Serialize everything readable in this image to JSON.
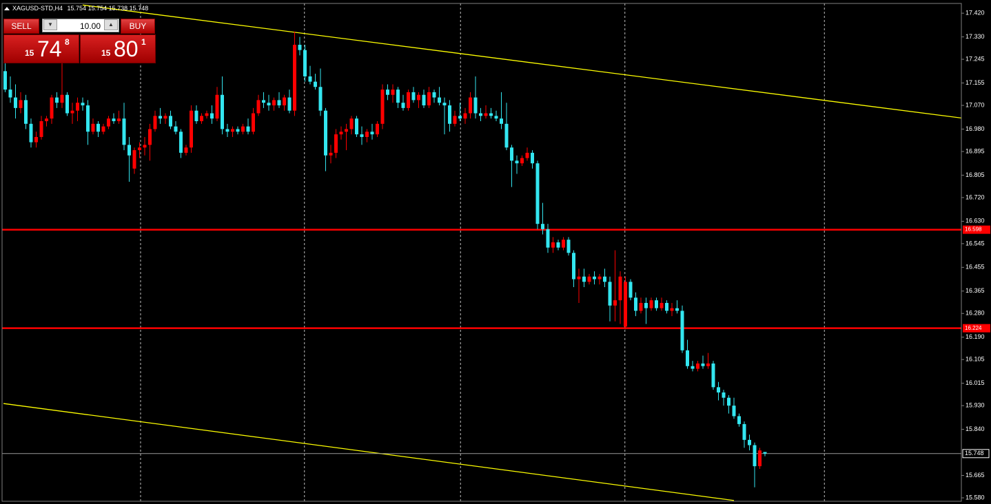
{
  "chart_data": {
    "type": "candlestick",
    "symbol": "XAGUSD-STD,H4",
    "up_color": "#ff0000",
    "down_color": "#33e6f0",
    "xlim": [
      -1,
      185
    ],
    "xticks": [
      26.2,
      57.9,
      88.1,
      119.9,
      158.5
    ],
    "ylim": [
      15.567,
      17.457
    ],
    "yticks": [
      {
        "value": 17.42,
        "label": "17.420"
      },
      {
        "value": 17.33,
        "label": "17.330"
      },
      17.245,
      17.155,
      {
        "value": 17.07,
        "label": "17.070"
      },
      {
        "value": 16.98,
        "label": "16.980"
      },
      16.895,
      16.805,
      {
        "value": 16.72,
        "label": "16.720"
      },
      {
        "value": 16.63,
        "label": "16.630"
      },
      16.545,
      16.455,
      16.365,
      {
        "value": 16.28,
        "label": "16.280"
      },
      {
        "value": 16.19,
        "label": "16.190"
      },
      16.105,
      16.015,
      {
        "value": 15.93,
        "label": "15.930"
      },
      {
        "value": 15.84,
        "label": "15.840"
      },
      15.665,
      {
        "value": 15.58,
        "label": "15.580"
      }
    ],
    "hlines": [
      {
        "value": 16.598,
        "color": "#ff0000"
      },
      {
        "value": 16.224,
        "color": "#ff0000"
      }
    ],
    "trendlines": [
      {
        "from": [
          15,
          17.451
        ],
        "to": [
          189,
          17.012
        ],
        "color": "#ffff00"
      },
      {
        "from": [
          -0.33,
          15.938
        ],
        "to": [
          141,
          15.57
        ],
        "color": "#ffff00"
      }
    ],
    "candles": [
      [
        17.2,
        17.25,
        17.12,
        17.13
      ],
      [
        17.13,
        17.18,
        17.08,
        17.1
      ],
      [
        17.1,
        17.15,
        17.02,
        17.06
      ],
      [
        17.06,
        17.12,
        17.04,
        17.09
      ],
      [
        17.09,
        17.11,
        16.98,
        17.0
      ],
      [
        17.0,
        17.02,
        16.91,
        16.93
      ],
      [
        16.93,
        16.97,
        16.91,
        16.95
      ],
      [
        16.95,
        17.03,
        16.94,
        17.01
      ],
      [
        17.01,
        17.03,
        16.99,
        17.02
      ],
      [
        17.02,
        17.11,
        17.0,
        17.1
      ],
      [
        17.1,
        17.12,
        17.06,
        17.08
      ],
      [
        17.08,
        17.23,
        17.06,
        17.11
      ],
      [
        17.11,
        17.12,
        17.03,
        17.04
      ],
      [
        17.04,
        17.08,
        17.0,
        17.05
      ],
      [
        17.05,
        17.1,
        17.01,
        17.08
      ],
      [
        17.08,
        17.1,
        17.05,
        17.07
      ],
      [
        17.07,
        17.09,
        16.92,
        16.97
      ],
      [
        16.97,
        17.02,
        16.96,
        17.0
      ],
      [
        17.0,
        17.01,
        16.95,
        16.97
      ],
      [
        16.97,
        17.0,
        16.96,
        16.99
      ],
      [
        16.99,
        17.03,
        16.98,
        17.02
      ],
      [
        17.02,
        17.04,
        17.0,
        17.01
      ],
      [
        17.01,
        17.05,
        17.0,
        17.02
      ],
      [
        17.02,
        17.08,
        16.9,
        16.92
      ],
      [
        16.92,
        16.95,
        16.78,
        16.88
      ],
      [
        16.83,
        16.91,
        16.81,
        16.9
      ],
      [
        16.9,
        16.93,
        16.87,
        16.91
      ],
      [
        16.91,
        16.95,
        16.88,
        16.92
      ],
      [
        16.92,
        17.0,
        16.86,
        16.98
      ],
      [
        16.98,
        17.05,
        16.97,
        17.03
      ],
      [
        17.03,
        17.06,
        17.0,
        17.02
      ],
      [
        17.02,
        17.04,
        17.0,
        17.03
      ],
      [
        17.03,
        17.05,
        16.98,
        16.99
      ],
      [
        16.99,
        17.01,
        16.96,
        16.97
      ],
      [
        16.97,
        16.98,
        16.87,
        16.89
      ],
      [
        16.89,
        16.92,
        16.88,
        16.91
      ],
      [
        16.91,
        17.07,
        16.89,
        17.05
      ],
      [
        17.05,
        17.07,
        17.0,
        17.01
      ],
      [
        17.01,
        17.04,
        17.0,
        17.03
      ],
      [
        17.03,
        17.05,
        17.02,
        17.04
      ],
      [
        17.04,
        17.07,
        17.0,
        17.02
      ],
      [
        17.02,
        17.14,
        17.01,
        17.11
      ],
      [
        17.11,
        17.18,
        16.96,
        16.98
      ],
      [
        16.98,
        17.0,
        16.95,
        16.97
      ],
      [
        16.97,
        16.99,
        16.95,
        16.98
      ],
      [
        16.98,
        16.99,
        16.96,
        16.97
      ],
      [
        16.97,
        17.0,
        16.96,
        16.99
      ],
      [
        16.99,
        17.02,
        16.96,
        16.97
      ],
      [
        16.97,
        17.06,
        16.96,
        17.04
      ],
      [
        17.04,
        17.11,
        17.03,
        17.09
      ],
      [
        17.09,
        17.12,
        17.06,
        17.08
      ],
      [
        17.08,
        17.11,
        17.05,
        17.07
      ],
      [
        17.07,
        17.1,
        17.05,
        17.09
      ],
      [
        17.09,
        17.12,
        17.06,
        17.07
      ],
      [
        17.07,
        17.11,
        17.05,
        17.1
      ],
      [
        17.1,
        17.13,
        17.04,
        17.05
      ],
      [
        17.05,
        17.35,
        17.03,
        17.3
      ],
      [
        17.3,
        17.33,
        17.26,
        17.28
      ],
      [
        17.28,
        17.3,
        17.16,
        17.18
      ],
      [
        17.18,
        17.22,
        17.15,
        17.16
      ],
      [
        17.16,
        17.19,
        17.13,
        17.14
      ],
      [
        17.14,
        17.21,
        17.03,
        17.05
      ],
      [
        17.05,
        17.06,
        16.82,
        16.88
      ],
      [
        16.88,
        16.92,
        16.85,
        16.89
      ],
      [
        16.89,
        16.98,
        16.87,
        16.96
      ],
      [
        16.96,
        16.99,
        16.94,
        16.97
      ],
      [
        16.97,
        17.0,
        16.9,
        16.98
      ],
      [
        16.98,
        17.03,
        16.96,
        17.02
      ],
      [
        17.02,
        17.03,
        16.95,
        16.96
      ],
      [
        16.96,
        16.99,
        16.92,
        16.95
      ],
      [
        16.95,
        16.98,
        16.93,
        16.97
      ],
      [
        16.97,
        17.0,
        16.94,
        16.96
      ],
      [
        16.96,
        17.01,
        16.95,
        17.0
      ],
      [
        17.0,
        17.15,
        16.98,
        17.13
      ],
      [
        17.13,
        17.15,
        17.09,
        17.11
      ],
      [
        17.11,
        17.15,
        17.08,
        17.13
      ],
      [
        17.13,
        17.14,
        17.06,
        17.08
      ],
      [
        17.08,
        17.11,
        17.05,
        17.06
      ],
      [
        17.06,
        17.13,
        17.05,
        17.12
      ],
      [
        17.12,
        17.14,
        17.08,
        17.09
      ],
      [
        17.09,
        17.12,
        17.06,
        17.11
      ],
      [
        17.11,
        17.13,
        17.06,
        17.07
      ],
      [
        17.07,
        17.14,
        17.06,
        17.12
      ],
      [
        17.12,
        17.13,
        17.08,
        17.1
      ],
      [
        17.1,
        17.14,
        17.07,
        17.08
      ],
      [
        17.08,
        17.1,
        16.96,
        17.07
      ],
      [
        17.07,
        17.09,
        16.97,
        17.0
      ],
      [
        17.0,
        17.05,
        16.99,
        17.03
      ],
      [
        17.03,
        17.08,
        17.01,
        17.02
      ],
      [
        17.02,
        17.06,
        17.0,
        17.04
      ],
      [
        17.04,
        17.12,
        17.02,
        17.1
      ],
      [
        17.1,
        17.18,
        17.02,
        17.04
      ],
      [
        17.04,
        17.06,
        17.01,
        17.03
      ],
      [
        17.03,
        17.07,
        17.02,
        17.04
      ],
      [
        17.04,
        17.06,
        17.02,
        17.03
      ],
      [
        17.03,
        17.05,
        17.01,
        17.02
      ],
      [
        17.02,
        17.12,
        16.98,
        17.0
      ],
      [
        17.0,
        17.08,
        16.9,
        16.91
      ],
      [
        16.91,
        16.92,
        16.76,
        16.86
      ],
      [
        16.86,
        16.88,
        16.81,
        16.85
      ],
      [
        16.85,
        16.88,
        16.84,
        16.87
      ],
      [
        16.87,
        16.91,
        16.86,
        16.89
      ],
      [
        16.89,
        16.9,
        16.83,
        16.85
      ],
      [
        16.85,
        16.86,
        16.6,
        16.62
      ],
      [
        16.62,
        16.7,
        16.58,
        16.6
      ],
      [
        16.6,
        16.62,
        16.51,
        16.53
      ],
      [
        16.53,
        16.57,
        16.51,
        16.55
      ],
      [
        16.55,
        16.56,
        16.52,
        16.53
      ],
      [
        16.53,
        16.57,
        16.52,
        16.56
      ],
      [
        16.56,
        16.57,
        16.5,
        16.51
      ],
      [
        16.51,
        16.52,
        16.38,
        16.41
      ],
      [
        16.41,
        16.45,
        16.32,
        16.42
      ],
      [
        16.42,
        16.45,
        16.38,
        16.4
      ],
      [
        16.4,
        16.43,
        16.39,
        16.42
      ],
      [
        16.42,
        16.44,
        16.39,
        16.41
      ],
      [
        16.41,
        16.43,
        16.39,
        16.42
      ],
      [
        16.42,
        16.45,
        16.38,
        16.4
      ],
      [
        16.4,
        16.42,
        16.25,
        16.31
      ],
      [
        16.31,
        16.52,
        16.25,
        16.33
      ],
      [
        16.33,
        16.44,
        16.24,
        16.42
      ],
      [
        16.23,
        16.42,
        16.22,
        16.4
      ],
      [
        16.4,
        16.41,
        16.33,
        16.34
      ],
      [
        16.34,
        16.36,
        16.27,
        16.29
      ],
      [
        16.29,
        16.34,
        16.28,
        16.32
      ],
      [
        16.32,
        16.34,
        16.24,
        16.3
      ],
      [
        16.3,
        16.34,
        16.29,
        16.33
      ],
      [
        16.33,
        16.34,
        16.29,
        16.3
      ],
      [
        16.3,
        16.34,
        16.29,
        16.32
      ],
      [
        16.32,
        16.33,
        16.28,
        16.29
      ],
      [
        16.29,
        16.32,
        16.27,
        16.3
      ],
      [
        16.3,
        16.33,
        16.28,
        16.29
      ],
      [
        16.29,
        16.31,
        16.13,
        16.14
      ],
      [
        16.14,
        16.18,
        16.07,
        16.08
      ],
      [
        16.08,
        16.1,
        16.06,
        16.07
      ],
      [
        16.07,
        16.1,
        16.06,
        16.09
      ],
      [
        16.09,
        16.12,
        16.07,
        16.08
      ],
      [
        16.08,
        16.13,
        16.07,
        16.09
      ],
      [
        16.09,
        16.1,
        15.99,
        16.0
      ],
      [
        16.0,
        16.02,
        15.95,
        15.98
      ],
      [
        15.98,
        15.99,
        15.93,
        15.96
      ],
      [
        15.96,
        15.97,
        15.9,
        15.93
      ],
      [
        15.93,
        15.96,
        15.88,
        15.89
      ],
      [
        15.89,
        15.9,
        15.85,
        15.86
      ],
      [
        15.86,
        15.87,
        15.77,
        15.8
      ],
      [
        15.8,
        15.82,
        15.76,
        15.78
      ],
      [
        15.78,
        15.79,
        15.62,
        15.7
      ],
      [
        15.7,
        15.77,
        15.69,
        15.76
      ],
      [
        15.754,
        15.754,
        15.738,
        15.748
      ]
    ]
  },
  "trade_panel": {
    "sell": "SELL",
    "lot": "10.00",
    "buy": "BUY",
    "bid": {
      "big": "15",
      "main": "74",
      "small": "8"
    },
    "ask": {
      "big": "15",
      "main": "80",
      "small": "1"
    }
  }
}
